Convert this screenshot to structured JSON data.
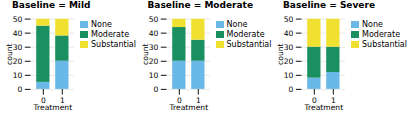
{
  "chart_data": [
    {
      "type": "bar",
      "stacked": true,
      "title": "Baseline = Mild",
      "categories": [
        "0",
        "1"
      ],
      "series": [
        {
          "name": "None",
          "color": "#6ab8e8",
          "values": [
            5,
            20
          ]
        },
        {
          "name": "Moderate",
          "color": "#1a9060",
          "values": [
            40,
            18
          ]
        },
        {
          "name": "Substantial",
          "color": "#f0e030",
          "values": [
            5,
            12
          ]
        }
      ],
      "xlabel": "Treatment",
      "ylabel": "count",
      "ylim": [
        0,
        50
      ],
      "yticks": [
        0,
        10,
        20,
        30,
        40,
        50
      ],
      "grid": true,
      "legend": "right"
    },
    {
      "type": "bar",
      "stacked": true,
      "title": "Baseline = Moderate",
      "categories": [
        "0",
        "1"
      ],
      "series": [
        {
          "name": "None",
          "color": "#6ab8e8",
          "values": [
            20,
            20
          ]
        },
        {
          "name": "Moderate",
          "color": "#1a9060",
          "values": [
            24,
            15
          ]
        },
        {
          "name": "Substantial",
          "color": "#f0e030",
          "values": [
            6,
            15
          ]
        }
      ],
      "xlabel": "Treatment",
      "ylabel": "count",
      "ylim": [
        0,
        50
      ],
      "yticks": [
        0,
        10,
        20,
        30,
        40,
        50
      ],
      "grid": true,
      "legend": "right"
    },
    {
      "type": "bar",
      "stacked": true,
      "title": "Baseline = Severe",
      "categories": [
        "0",
        "1"
      ],
      "series": [
        {
          "name": "None",
          "color": "#6ab8e8",
          "values": [
            8,
            12
          ]
        },
        {
          "name": "Moderate",
          "color": "#1a9060",
          "values": [
            22,
            18
          ]
        },
        {
          "name": "Substantial",
          "color": "#f0e030",
          "values": [
            20,
            20
          ]
        }
      ],
      "xlabel": "Treatment",
      "ylabel": "count",
      "ylim": [
        0,
        50
      ],
      "yticks": [
        0,
        10,
        20,
        30,
        40,
        50
      ],
      "grid": true,
      "legend": "right"
    }
  ]
}
